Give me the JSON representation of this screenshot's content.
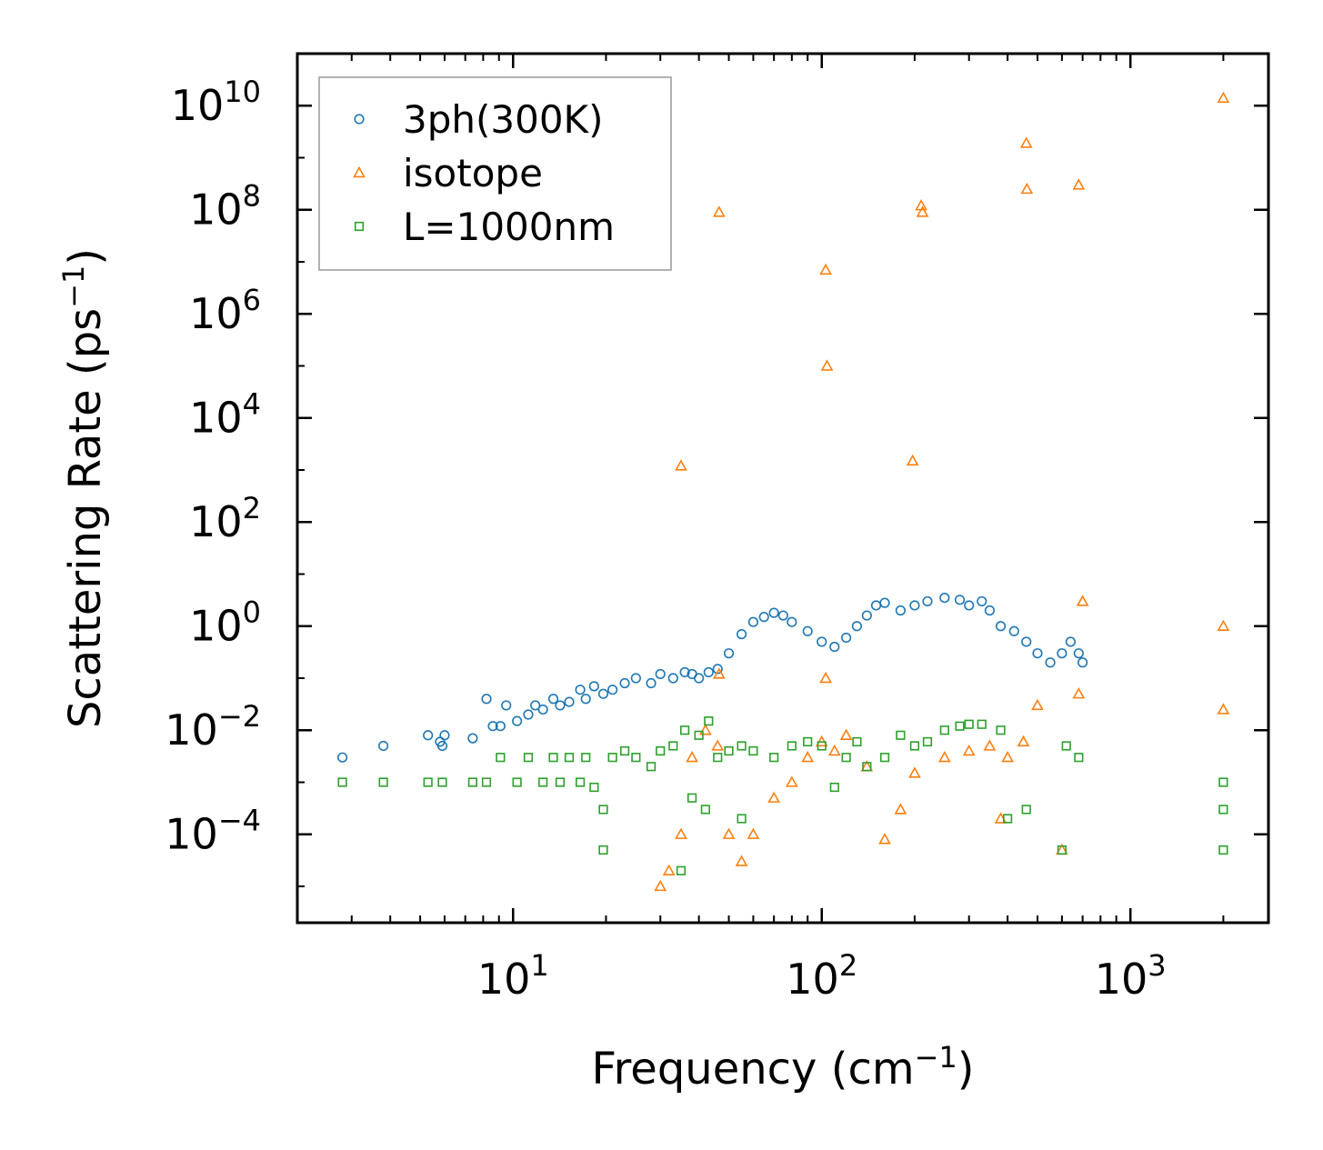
{
  "chart_data": {
    "type": "scatter",
    "xscale": "log",
    "yscale": "log",
    "xlim": [
      2,
      2800
    ],
    "ylim": [
      2e-06,
      100000000000
    ],
    "xlabel": {
      "text": "Frequency (cm",
      "sup": "−1",
      "tail": ")"
    },
    "ylabel": {
      "text": "Scattering Rate (ps",
      "sup": "−1",
      "tail": ")"
    },
    "xticks": [
      {
        "value": 10,
        "base": "10",
        "exp": "1"
      },
      {
        "value": 100,
        "base": "10",
        "exp": "2"
      },
      {
        "value": 1000,
        "base": "10",
        "exp": "3"
      }
    ],
    "yticks": [
      {
        "value": 0.0001,
        "base": "10",
        "exp": "−4"
      },
      {
        "value": 0.01,
        "base": "10",
        "exp": "−2"
      },
      {
        "value": 1,
        "base": "10",
        "exp": "0"
      },
      {
        "value": 100,
        "base": "10",
        "exp": "2"
      },
      {
        "value": 10000,
        "base": "10",
        "exp": "4"
      },
      {
        "value": 1000000,
        "base": "10",
        "exp": "6"
      },
      {
        "value": 100000000,
        "base": "10",
        "exp": "8"
      },
      {
        "value": 10000000000,
        "base": "10",
        "exp": "10"
      }
    ],
    "legend": {
      "position": "top-left"
    },
    "series": [
      {
        "name": "3ph(300K)",
        "marker": "circle",
        "color": "#1f77b4",
        "x": [
          2.8,
          3.8,
          5.3,
          5.8,
          6.0,
          5.9,
          7.4,
          8.2,
          8.6,
          9.1,
          9.5,
          10.3,
          11.2,
          11.8,
          12.5,
          13.5,
          14.2,
          15.2,
          16.5,
          17.2,
          18.3,
          19.6,
          21,
          23,
          25,
          28,
          30,
          33,
          36,
          38,
          40,
          43,
          46,
          50,
          55,
          60,
          65,
          70,
          75,
          80,
          90,
          100,
          110,
          120,
          130,
          140,
          150,
          160,
          180,
          200,
          220,
          250,
          280,
          300,
          330,
          350,
          380,
          420,
          460,
          500,
          550,
          600,
          640,
          680,
          700
        ],
        "y": [
          0.003,
          0.005,
          0.008,
          0.006,
          0.008,
          0.005,
          0.007,
          0.04,
          0.012,
          0.012,
          0.03,
          0.015,
          0.02,
          0.03,
          0.025,
          0.04,
          0.03,
          0.035,
          0.06,
          0.04,
          0.07,
          0.05,
          0.06,
          0.08,
          0.1,
          0.08,
          0.12,
          0.1,
          0.13,
          0.12,
          0.1,
          0.13,
          0.15,
          0.3,
          0.7,
          1.2,
          1.5,
          1.8,
          1.6,
          1.2,
          0.8,
          0.5,
          0.4,
          0.6,
          1.0,
          1.6,
          2.5,
          2.8,
          2.0,
          2.5,
          3.0,
          3.5,
          3.2,
          2.5,
          3.0,
          2.0,
          1.0,
          0.8,
          0.5,
          0.3,
          0.2,
          0.3,
          0.5,
          0.3,
          0.2
        ]
      },
      {
        "name": "isotope",
        "marker": "triangle",
        "color": "#ff7f0e",
        "x": [
          35,
          46.5,
          103,
          104,
          197,
          210,
          212,
          460,
          462,
          680,
          2000,
          30,
          32,
          35,
          38,
          42,
          46,
          50,
          55,
          60,
          70,
          80,
          90,
          100,
          110,
          120,
          140,
          160,
          180,
          200,
          250,
          300,
          350,
          380,
          400,
          450,
          500,
          600,
          680,
          700,
          2000,
          2000,
          46.5,
          103
        ],
        "y": [
          1200,
          90000000,
          7000000,
          100000,
          1500,
          120000000,
          90000000,
          1900000000,
          250000000,
          300000000,
          14000000000,
          1e-05,
          2e-05,
          0.0001,
          0.003,
          0.01,
          0.005,
          0.0001,
          3e-05,
          0.0001,
          0.0005,
          0.001,
          0.003,
          0.006,
          0.004,
          0.008,
          0.002,
          8e-05,
          0.0003,
          0.0015,
          0.003,
          0.004,
          0.005,
          0.0002,
          0.003,
          0.006,
          0.03,
          5e-05,
          0.05,
          3,
          1,
          0.025,
          0.12,
          0.1
        ]
      },
      {
        "name": "L=1000nm",
        "marker": "square",
        "color": "#2ca02c",
        "x": [
          2.8,
          3.8,
          5.3,
          5.9,
          7.4,
          8.2,
          9.1,
          10.3,
          11.2,
          12.5,
          13.5,
          14.2,
          15.2,
          16.5,
          17.2,
          18.3,
          19.6,
          21,
          23,
          25,
          28,
          30,
          33,
          36,
          38,
          40,
          43,
          46,
          50,
          55,
          60,
          70,
          80,
          90,
          100,
          110,
          120,
          130,
          140,
          160,
          180,
          200,
          220,
          250,
          280,
          300,
          330,
          380,
          400,
          460,
          600,
          620,
          680,
          2000,
          2000,
          2000,
          19.6,
          35,
          42,
          55
        ],
        "y": [
          0.001,
          0.001,
          0.001,
          0.001,
          0.001,
          0.001,
          0.003,
          0.001,
          0.003,
          0.001,
          0.003,
          0.001,
          0.003,
          0.001,
          0.003,
          0.0008,
          0.0003,
          0.003,
          0.004,
          0.003,
          0.002,
          0.004,
          0.005,
          0.01,
          0.0005,
          0.008,
          0.015,
          0.003,
          0.004,
          0.005,
          0.004,
          0.003,
          0.005,
          0.006,
          0.005,
          0.0008,
          0.003,
          0.006,
          0.002,
          0.003,
          0.008,
          0.005,
          0.006,
          0.01,
          0.012,
          0.013,
          0.013,
          0.01,
          0.0002,
          0.0003,
          5e-05,
          0.005,
          0.003,
          0.001,
          0.0003,
          5e-05,
          5e-05,
          2e-05,
          0.0003,
          0.0002
        ]
      }
    ]
  }
}
